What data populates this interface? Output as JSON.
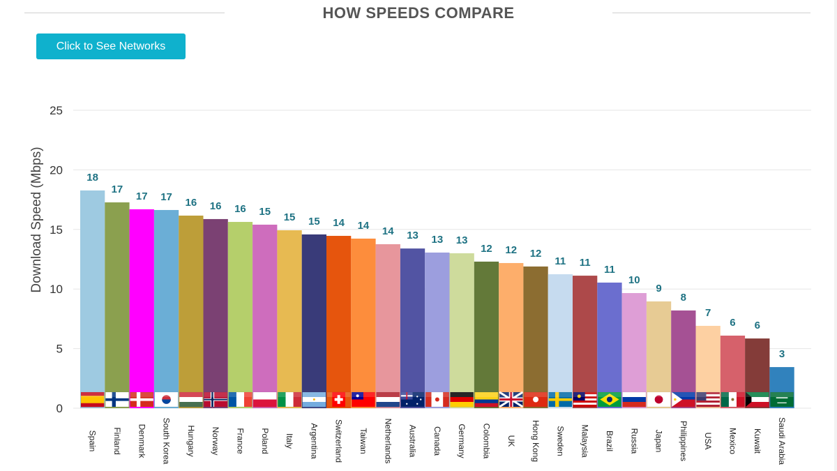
{
  "header": {
    "title": "HOW SPEEDS COMPARE",
    "button_label": "Click to See Networks"
  },
  "colors": {
    "title": "#555555",
    "button": "#0fb1cd",
    "value_label": "#1e7283",
    "grid": "#e6e6e6"
  },
  "chart_data": {
    "type": "bar",
    "title": "HOW SPEEDS COMPARE",
    "xlabel": "",
    "ylabel": "Download Speed (Mbps)",
    "ylim": [
      0,
      25
    ],
    "yticks": [
      0,
      5,
      10,
      15,
      20,
      25
    ],
    "grid": true,
    "categories": [
      "Spain",
      "Finland",
      "Denmark",
      "South Korea",
      "Hungary",
      "Norway",
      "France",
      "Poland",
      "Italy",
      "Argentina",
      "Switzerland",
      "Taiwan",
      "Netherlands",
      "Australia",
      "Canada",
      "Germany",
      "Colombia",
      "UK",
      "Hong Kong",
      "Sweden",
      "Malaysia",
      "Brazil",
      "Russia",
      "Japan",
      "Philippines",
      "USA",
      "Mexico",
      "Kuwait",
      "Saudi Arabia"
    ],
    "values": [
      18.27,
      17.27,
      16.69,
      16.63,
      16.16,
      15.87,
      15.63,
      15.4,
      14.93,
      14.58,
      14.46,
      14.23,
      13.76,
      13.4,
      13.06,
      13.0,
      12.3,
      12.18,
      11.89,
      11.24,
      11.12,
      10.54,
      9.66,
      8.96,
      8.2,
      6.91,
      6.09,
      5.85,
      3.45
    ],
    "data_labels": [
      "18",
      "17",
      "17",
      "17",
      "16",
      "16",
      "16",
      "15",
      "15",
      "15",
      "14",
      "14",
      "14",
      "13",
      "13",
      "13",
      "12",
      "12",
      "12",
      "11",
      "11",
      "11",
      "10",
      "9",
      "8",
      "7",
      "6",
      "6",
      "3"
    ],
    "bar_colors": [
      "#9ecae1",
      "#8ba04f",
      "#ff00ff",
      "#6baed6",
      "#bd9e39",
      "#7b4173",
      "#b5cf6b",
      "#ce6dbd",
      "#e7ba52",
      "#393b79",
      "#e6550d",
      "#fd8d3c",
      "#e7969c",
      "#5254a3",
      "#9c9ede",
      "#cedb9c",
      "#637939",
      "#fdae6b",
      "#8c6d31",
      "#c6dbef",
      "#ad494a",
      "#6b6ecf",
      "#de9ed6",
      "#e7cb94",
      "#a55194",
      "#fdd0a2",
      "#d6616b",
      "#843c39",
      "#3182bd"
    ],
    "flag_icons": [
      "flag-spain",
      "flag-finland",
      "flag-denmark",
      "flag-south-korea",
      "flag-hungary",
      "flag-norway",
      "flag-france",
      "flag-poland",
      "flag-italy",
      "flag-argentina",
      "flag-switzerland",
      "flag-taiwan",
      "flag-netherlands",
      "flag-australia",
      "flag-canada",
      "flag-germany",
      "flag-colombia",
      "flag-uk",
      "flag-hong-kong",
      "flag-sweden",
      "flag-malaysia",
      "flag-brazil",
      "flag-russia",
      "flag-japan",
      "flag-philippines",
      "flag-usa",
      "flag-mexico",
      "flag-kuwait",
      "flag-saudi-arabia"
    ]
  }
}
